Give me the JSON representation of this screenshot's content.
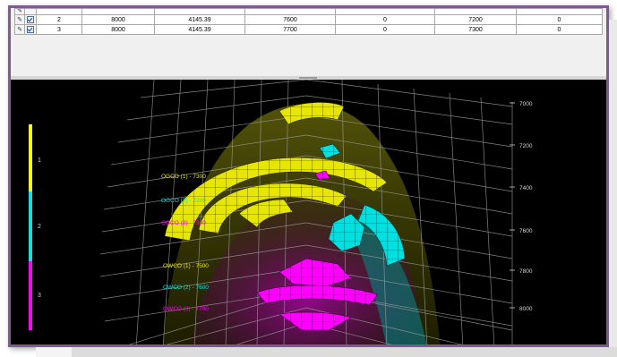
{
  "table": {
    "rows": [
      {
        "id": "2",
        "c1": "8000",
        "c2": "4145.39",
        "c3": "7600",
        "c4": "0",
        "c5": "7200",
        "c6": "0"
      },
      {
        "id": "3",
        "c1": "8000",
        "c2": "4145.39",
        "c3": "7700",
        "c4": "0",
        "c5": "7300",
        "c6": "0"
      }
    ]
  },
  "plot": {
    "legend_labels": [
      "1",
      "2",
      "3"
    ],
    "legend_colors": [
      "#ffff00",
      "#00e5e5",
      "#ff00ff"
    ],
    "depth_ticks": [
      "7000",
      "7200",
      "7400",
      "7600",
      "7800",
      "8000"
    ],
    "contacts": [
      {
        "label": "OGCO (1) - 7300",
        "color": "#e8e800"
      },
      {
        "label": "OGCO (2) - 7200",
        "color": "#00e5e5"
      },
      {
        "label": "OGCO (3) - 7300",
        "color": "#ff00ff"
      },
      {
        "label": "OWCO (1) - 7500",
        "color": "#e8e800"
      },
      {
        "label": "OWCO (2) - 7600",
        "color": "#00e5e5"
      },
      {
        "label": "OWCO (3) - 7700",
        "color": "#ff00ff"
      }
    ]
  }
}
